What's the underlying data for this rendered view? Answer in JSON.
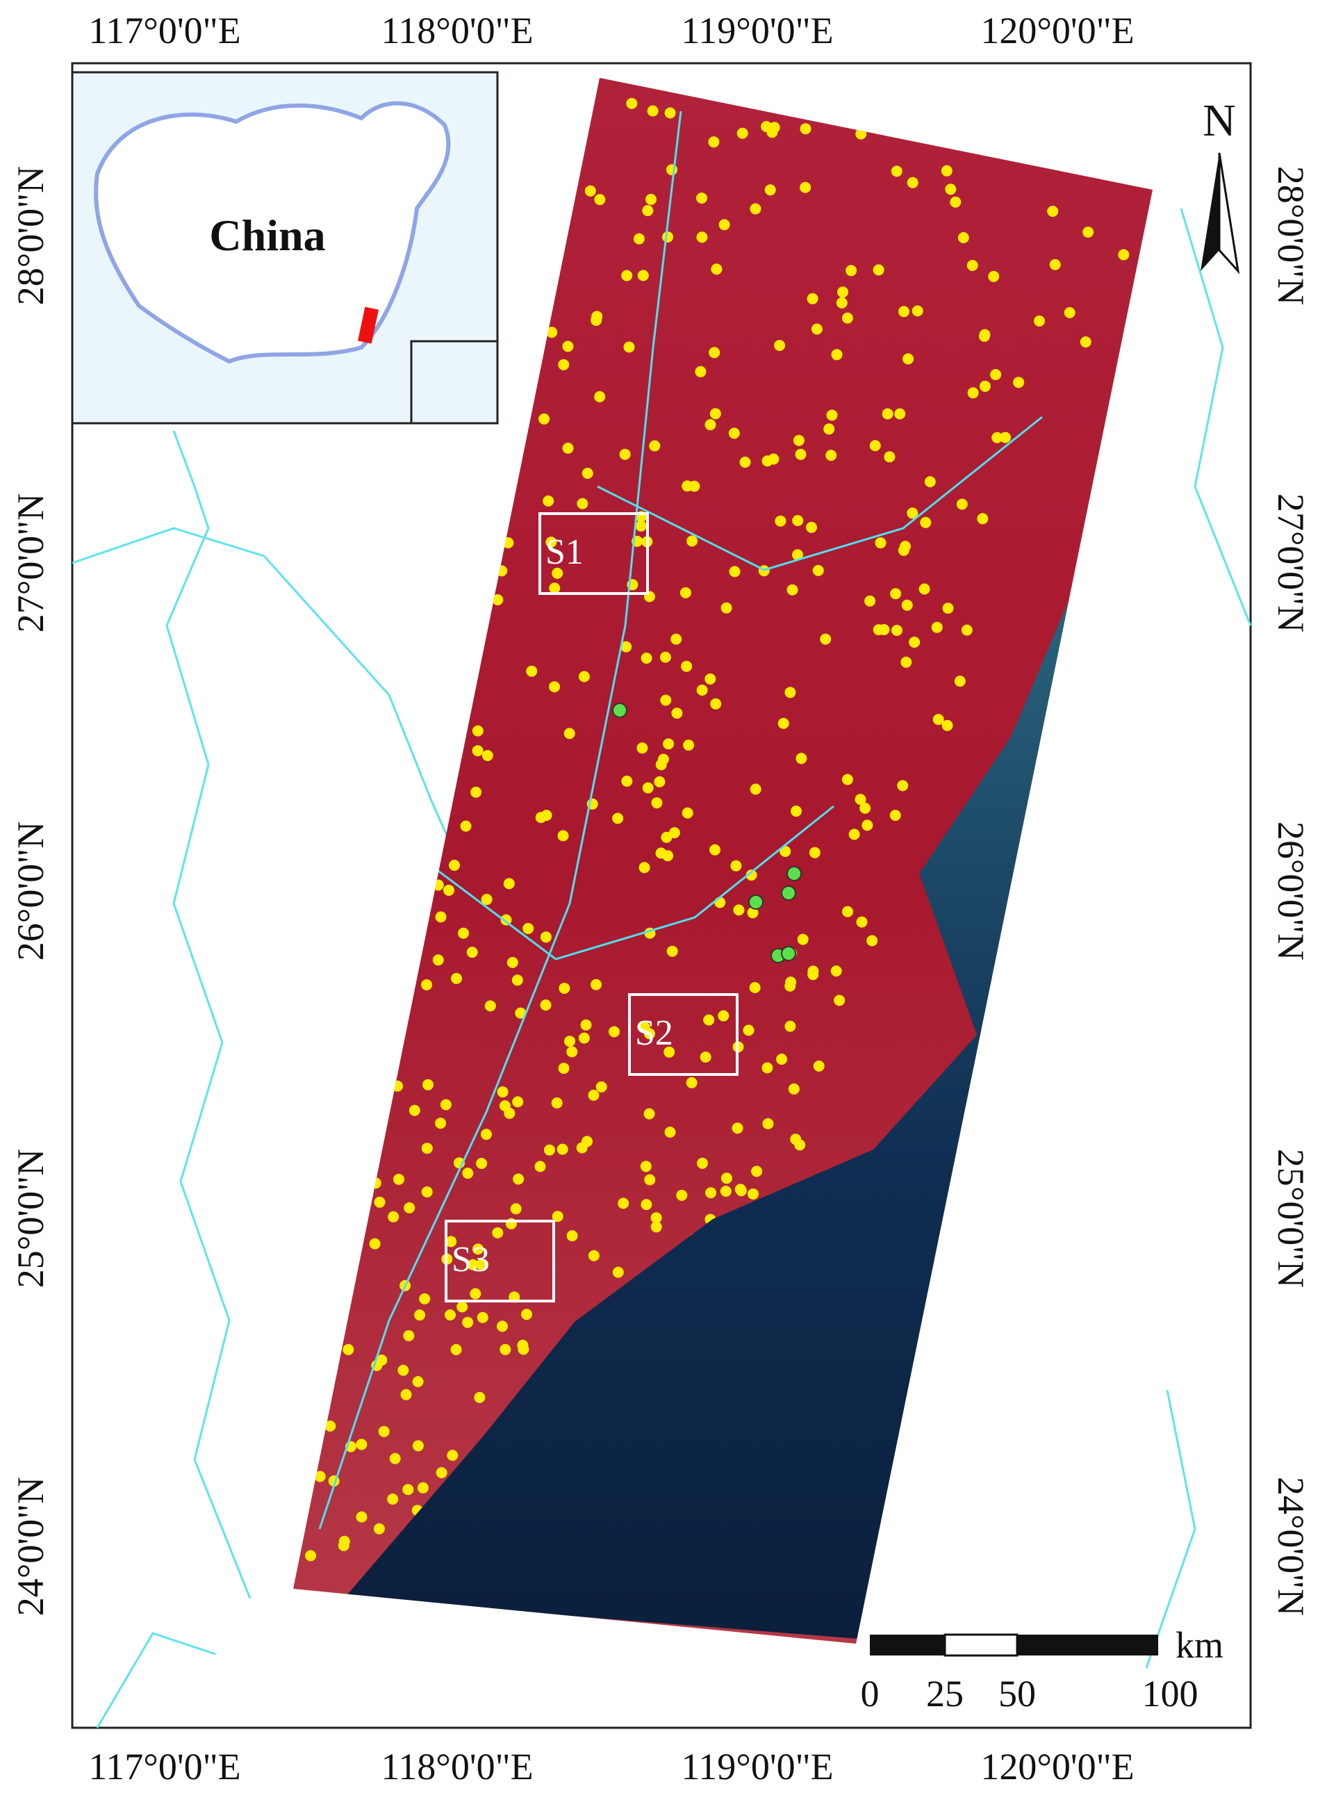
{
  "map": {
    "lon_labels": [
      "117°0'0\"E",
      "118°0'0\"E",
      "119°0'0\"E",
      "120°0'0\"E"
    ],
    "lat_labels": [
      "28°0'0\"N",
      "27°0'0\"N",
      "26°0'0\"N",
      "25°0'0\"N",
      "24°0'0\"N"
    ]
  },
  "inset": {
    "label": "China"
  },
  "north_arrow": {
    "label": "N"
  },
  "scale_bar": {
    "labels": [
      "0",
      "25",
      "50",
      "100"
    ],
    "unit": "km"
  },
  "sites": [
    {
      "label": "S1"
    },
    {
      "label": "S2"
    },
    {
      "label": "S3"
    }
  ]
}
